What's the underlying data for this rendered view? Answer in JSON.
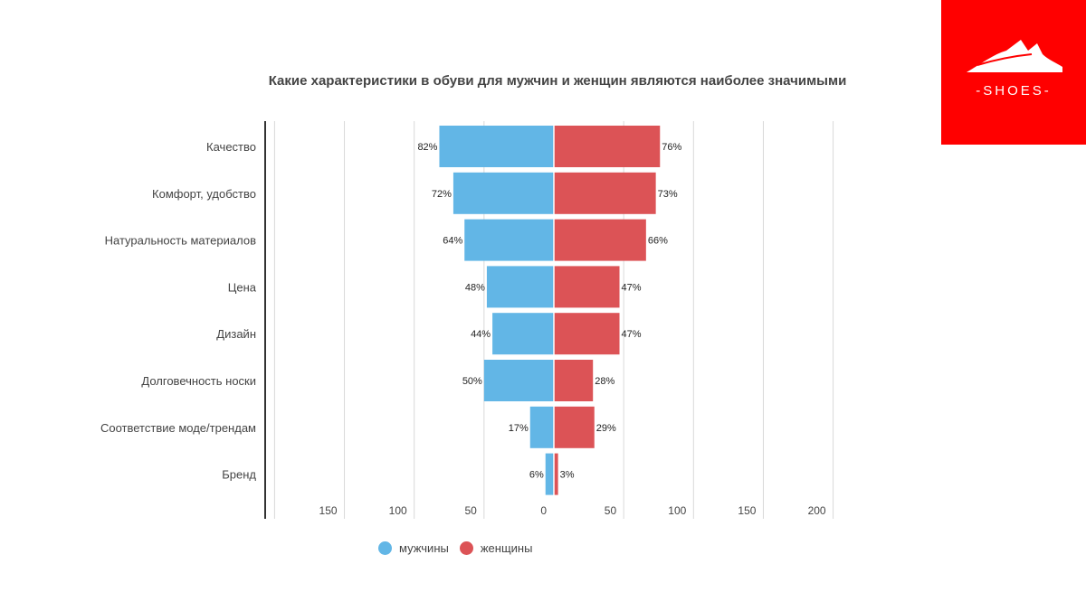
{
  "logo": {
    "text": "-SHOES-",
    "color": "#ff0000"
  },
  "chart_data": {
    "type": "bar",
    "orientation": "horizontal",
    "title": "Какие характеристики в обуви для мужчин и женщин являются наиболее значимыми",
    "categories": [
      "Качество",
      "Комфорт, удобство",
      "Натуральность материалов",
      "Цена",
      "Дизайн",
      "Долговечность носки",
      "Соответствие моде/трендам",
      "Бренд"
    ],
    "series": [
      {
        "name": "мужчины",
        "color": "#62b6e6",
        "direction": "left",
        "values": [
          82,
          72,
          64,
          48,
          44,
          50,
          17,
          6
        ],
        "labels": [
          "82%",
          "72%",
          "64%",
          "48%",
          "44%",
          "50%",
          "17%",
          "6%"
        ]
      },
      {
        "name": "женщины",
        "color": "#dc5356",
        "direction": "right",
        "values": [
          76,
          73,
          66,
          47,
          47,
          28,
          29,
          3
        ],
        "labels": [
          "76%",
          "73%",
          "66%",
          "47%",
          "47%",
          "28%",
          "29%",
          "3%"
        ]
      }
    ],
    "xlim": [
      -200,
      200
    ],
    "x_ticks": [
      -150,
      -100,
      -50,
      0,
      50,
      100,
      150,
      200
    ],
    "x_tick_labels": [
      "150",
      "100",
      "50",
      "0",
      "50",
      "100",
      "150",
      "200"
    ],
    "grid": true,
    "legend": "bottom-center"
  }
}
